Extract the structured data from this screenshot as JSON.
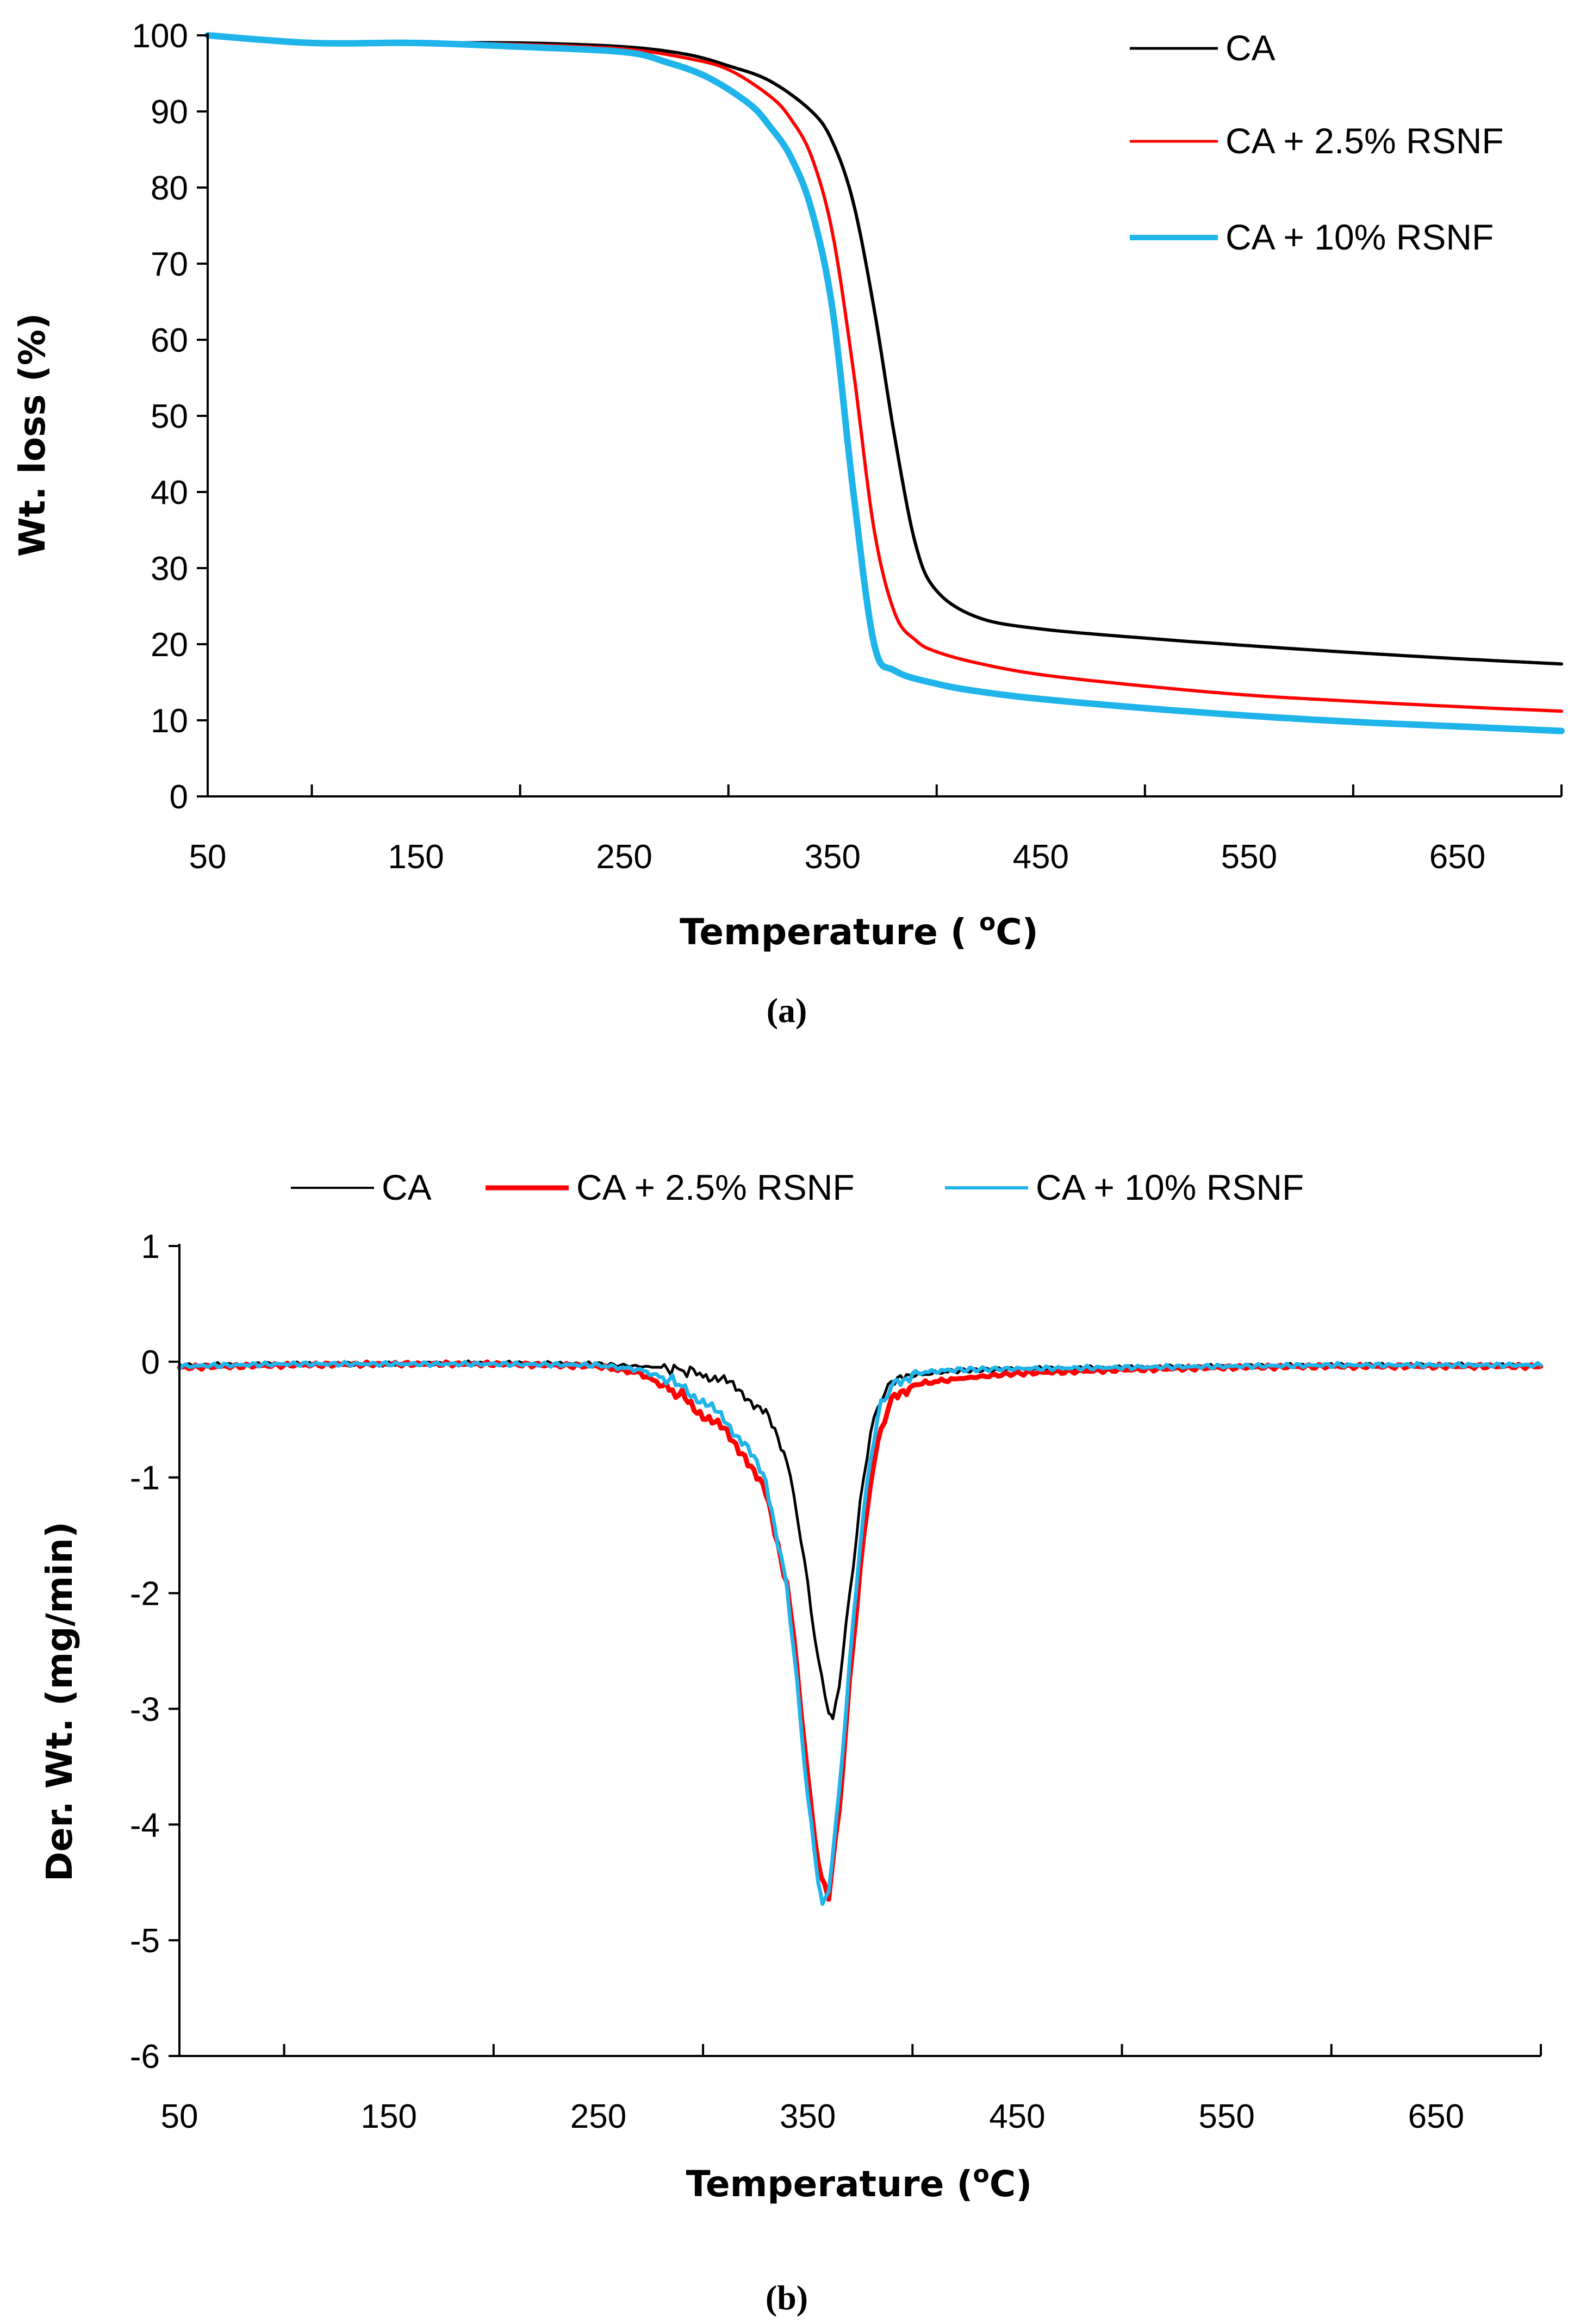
{
  "chart_data": [
    {
      "type": "line",
      "panel": "a",
      "caption": "(a)",
      "title": "",
      "xlabel": "Temperature ( oC)",
      "xlabel_parts": [
        "Temperature ( ",
        "o",
        "C)"
      ],
      "ylabel": "Wt. loss (%)",
      "xlim": [
        50,
        700
      ],
      "ylim": [
        0,
        100
      ],
      "x_ticks": [
        50,
        150,
        250,
        350,
        450,
        550,
        650
      ],
      "y_ticks": [
        0,
        10,
        20,
        30,
        40,
        50,
        60,
        70,
        80,
        90,
        100
      ],
      "legend_position": "top-right",
      "series": [
        {
          "name": "CA",
          "color": "#000000",
          "x": [
            50,
            100,
            150,
            200,
            250,
            280,
            300,
            320,
            340,
            350,
            360,
            370,
            380,
            390,
            400,
            420,
            450,
            500,
            550,
            600,
            650,
            700
          ],
          "y": [
            100,
            99,
            99,
            99,
            98.5,
            97.5,
            96,
            94,
            90,
            86,
            78,
            64,
            47,
            33,
            27,
            23.5,
            22,
            20.8,
            19.8,
            18.9,
            18.1,
            17.4
          ]
        },
        {
          "name": "CA + 2.5% RSNF",
          "color": "#ff0000",
          "x": [
            50,
            100,
            150,
            200,
            250,
            280,
            300,
            320,
            330,
            340,
            350,
            360,
            370,
            380,
            390,
            400,
            420,
            450,
            500,
            550,
            600,
            650,
            700
          ],
          "y": [
            100,
            99,
            99,
            98.8,
            98.2,
            97,
            95.5,
            92,
            89,
            84,
            74,
            56,
            35,
            24,
            20.5,
            19,
            17.5,
            16,
            14.5,
            13.3,
            12.5,
            11.8,
            11.2
          ]
        },
        {
          "name": "CA + 10% RSNF",
          "color": "#1fb4ea",
          "x": [
            50,
            100,
            150,
            200,
            250,
            270,
            290,
            310,
            320,
            330,
            340,
            350,
            360,
            370,
            380,
            400,
            420,
            450,
            500,
            550,
            600,
            650,
            700
          ],
          "y": [
            100,
            99,
            99,
            98.5,
            97.8,
            96.5,
            94.5,
            91,
            88,
            84,
            77,
            64,
            40,
            20,
            16.5,
            14.8,
            13.8,
            12.8,
            11.6,
            10.6,
            9.8,
            9.2,
            8.6
          ]
        }
      ]
    },
    {
      "type": "line",
      "panel": "b",
      "caption": "(b)",
      "title": "",
      "xlabel": "Temperature (oC)",
      "xlabel_parts": [
        "Temperature (",
        "o",
        "C)"
      ],
      "ylabel": "Der. Wt.  (mg/min)",
      "xlim": [
        50,
        700
      ],
      "ylim": [
        -6,
        1
      ],
      "x_ticks": [
        50,
        150,
        250,
        350,
        450,
        550,
        650
      ],
      "y_ticks": [
        -6,
        -5,
        -4,
        -3,
        -2,
        -1,
        0,
        1
      ],
      "legend_position": "top",
      "series": [
        {
          "name": "CA",
          "color": "#000000",
          "x": [
            50,
            100,
            150,
            200,
            250,
            280,
            300,
            310,
            320,
            330,
            340,
            345,
            350,
            355,
            360,
            362,
            365,
            370,
            375,
            380,
            385,
            390,
            400,
            420,
            450,
            500,
            550,
            600,
            650,
            700
          ],
          "y": [
            -0.03,
            -0.02,
            -0.02,
            -0.01,
            -0.02,
            -0.05,
            -0.1,
            -0.17,
            -0.28,
            -0.45,
            -0.85,
            -1.3,
            -1.9,
            -2.6,
            -3.05,
            -3.1,
            -2.8,
            -2.0,
            -1.2,
            -0.6,
            -0.35,
            -0.2,
            -0.12,
            -0.08,
            -0.06,
            -0.05,
            -0.04,
            -0.03,
            -0.03,
            -0.03
          ]
        },
        {
          "name": "CA + 2.5% RSNF",
          "color": "#ff0000",
          "x": [
            50,
            100,
            150,
            200,
            250,
            270,
            290,
            300,
            310,
            320,
            330,
            340,
            345,
            350,
            355,
            358,
            360,
            365,
            370,
            375,
            380,
            385,
            390,
            400,
            420,
            450,
            500,
            550,
            600,
            650,
            700
          ],
          "y": [
            -0.05,
            -0.03,
            -0.02,
            -0.02,
            -0.04,
            -0.1,
            -0.3,
            -0.45,
            -0.6,
            -0.8,
            -1.15,
            -1.9,
            -2.7,
            -3.6,
            -4.3,
            -4.55,
            -4.6,
            -3.9,
            -2.8,
            -1.8,
            -1.0,
            -0.55,
            -0.35,
            -0.2,
            -0.15,
            -0.1,
            -0.07,
            -0.05,
            -0.04,
            -0.04,
            -0.04
          ]
        },
        {
          "name": "CA + 10% RSNF",
          "color": "#1fb4ea",
          "x": [
            50,
            100,
            150,
            200,
            250,
            270,
            290,
            300,
            310,
            320,
            330,
            340,
            345,
            350,
            355,
            357,
            360,
            365,
            370,
            375,
            380,
            385,
            390,
            400,
            420,
            450,
            500,
            550,
            600,
            650,
            700
          ],
          "y": [
            -0.04,
            -0.02,
            -0.02,
            -0.02,
            -0.03,
            -0.07,
            -0.2,
            -0.35,
            -0.5,
            -0.7,
            -1.05,
            -1.9,
            -2.8,
            -3.8,
            -4.5,
            -4.72,
            -4.55,
            -3.7,
            -2.6,
            -1.6,
            -0.85,
            -0.35,
            -0.2,
            -0.1,
            -0.07,
            -0.06,
            -0.05,
            -0.04,
            -0.03,
            -0.03,
            -0.03
          ]
        }
      ]
    }
  ]
}
